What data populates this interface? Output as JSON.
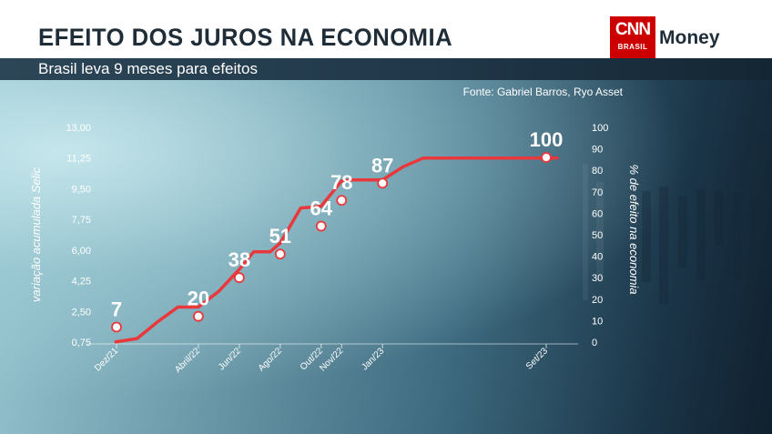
{
  "header": {
    "title": "EFEITO DOS JUROS NA ECONOMIA",
    "subtitle": "Brasil leva 9 meses para efeitos",
    "logo_text": "CNN",
    "logo_sub": "BRASIL",
    "logo_brand": "Money",
    "source": "Fonte: Gabriel Barros, Ryo Asset"
  },
  "colors": {
    "line": "#e8383c",
    "marker_fill": "#ffffff",
    "label": "#ffffff",
    "brand_red": "#cc0000"
  },
  "chart_data": {
    "type": "line",
    "title": "",
    "ylabel_left": "variação acumulada Selic",
    "ylabel_right": "% de efeito na economia",
    "left_axis": {
      "ticks": [
        "13,00",
        "11,25",
        "9,50",
        "7,75",
        "6,00",
        "4,25",
        "2,50",
        "0,75"
      ],
      "tick_values": [
        13.0,
        11.25,
        9.5,
        7.75,
        6.0,
        4.25,
        2.5,
        0.75
      ],
      "ylim": [
        0.75,
        13.0
      ]
    },
    "right_axis": {
      "ticks": [
        "100",
        "90",
        "80",
        "70",
        "60",
        "50",
        "40",
        "30",
        "20",
        "10",
        "0"
      ],
      "tick_values": [
        100,
        90,
        80,
        70,
        60,
        50,
        40,
        30,
        20,
        10,
        0
      ],
      "ylim": [
        0,
        100
      ]
    },
    "x_ticks": [
      {
        "label": "Dez/21",
        "month": 0
      },
      {
        "label": "Abril/22",
        "month": 4
      },
      {
        "label": "Jun/22",
        "month": 6
      },
      {
        "label": "Ago/22",
        "month": 8
      },
      {
        "label": "Out/22",
        "month": 10
      },
      {
        "label": "Nov/22",
        "month": 11
      },
      {
        "label": "Jan/23",
        "month": 13
      },
      {
        "label": "Set/23",
        "month": 21
      }
    ],
    "xlim": [
      0,
      21
    ],
    "series": [
      {
        "axis": "left",
        "values": [
          {
            "month": -0.1,
            "y": 0.75
          },
          {
            "month": 1.0,
            "y": 0.95
          },
          {
            "month": 2.0,
            "y": 1.9
          },
          {
            "month": 3.0,
            "y": 2.75
          },
          {
            "month": 4.0,
            "y": 2.75
          },
          {
            "month": 5.0,
            "y": 3.65
          },
          {
            "month": 6.0,
            "y": 4.9
          },
          {
            "month": 6.7,
            "y": 5.9
          },
          {
            "month": 7.5,
            "y": 5.9
          },
          {
            "month": 8.0,
            "y": 6.4
          },
          {
            "month": 9.0,
            "y": 8.4
          },
          {
            "month": 10.0,
            "y": 8.5
          },
          {
            "month": 11.0,
            "y": 9.95
          },
          {
            "month": 11.5,
            "y": 10.0
          },
          {
            "month": 13.0,
            "y": 10.0
          },
          {
            "month": 14.0,
            "y": 10.75
          },
          {
            "month": 15.0,
            "y": 11.25
          },
          {
            "month": 21.6,
            "y": 11.25
          }
        ]
      }
    ],
    "point_labels": [
      {
        "month": 0,
        "effect": 7,
        "label": "7"
      },
      {
        "month": 4,
        "effect": 12,
        "label": "20"
      },
      {
        "month": 6,
        "effect": 30,
        "label": "38"
      },
      {
        "month": 8,
        "effect": 41,
        "label": "51"
      },
      {
        "month": 10,
        "effect": 54,
        "label": "64"
      },
      {
        "month": 11,
        "effect": 66,
        "label": "78"
      },
      {
        "month": 13,
        "effect": 74,
        "label": "87"
      },
      {
        "month": 21,
        "effect": 86,
        "label": "100"
      }
    ],
    "grid": false
  }
}
